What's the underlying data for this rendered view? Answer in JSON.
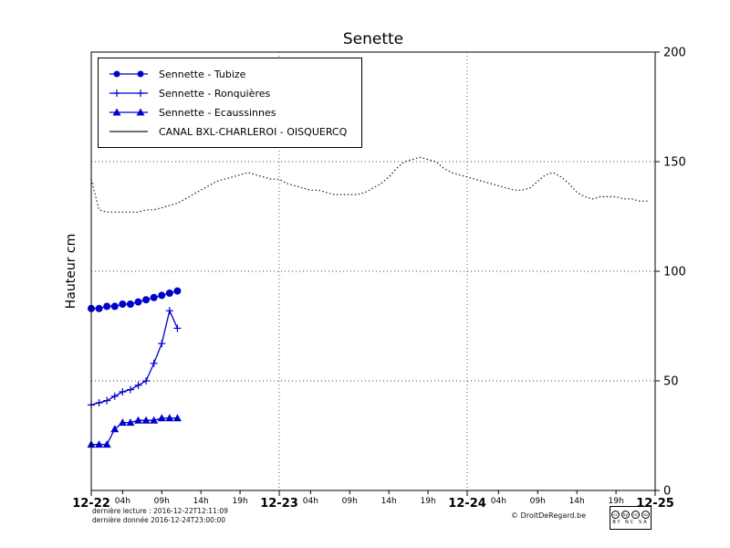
{
  "chart_data": {
    "type": "line",
    "title": "Senette",
    "ylabel": "Hauteur cm",
    "ylim": [
      0,
      200
    ],
    "xlim_hours": [
      0,
      72
    ],
    "grid": {
      "vertical_hours": [
        24,
        48
      ],
      "horizontal_values": [
        50,
        100,
        150
      ]
    },
    "y_ticks": [
      {
        "value": 0,
        "label": "0"
      },
      {
        "value": 50,
        "label": "50"
      },
      {
        "value": 100,
        "label": "100"
      },
      {
        "value": 150,
        "label": "150"
      },
      {
        "value": 200,
        "label": "200"
      }
    ],
    "x_major_ticks": [
      {
        "hour": 0,
        "label": "12-22"
      },
      {
        "hour": 24,
        "label": "12-23"
      },
      {
        "hour": 48,
        "label": "12-24"
      },
      {
        "hour": 72,
        "label": "12-25"
      }
    ],
    "x_minor_ticks": [
      {
        "hour": 4,
        "label": "04h"
      },
      {
        "hour": 9,
        "label": "09h"
      },
      {
        "hour": 14,
        "label": "14h"
      },
      {
        "hour": 19,
        "label": "19h"
      },
      {
        "hour": 28,
        "label": "04h"
      },
      {
        "hour": 33,
        "label": "09h"
      },
      {
        "hour": 38,
        "label": "14h"
      },
      {
        "hour": 43,
        "label": "19h"
      },
      {
        "hour": 52,
        "label": "04h"
      },
      {
        "hour": 57,
        "label": "09h"
      },
      {
        "hour": 62,
        "label": "14h"
      },
      {
        "hour": 67,
        "label": "19h"
      }
    ],
    "series": [
      {
        "name": "Sennette - Tubize",
        "color": "#0000cc",
        "marker": "circle",
        "line": "solid",
        "x_hours": [
          0,
          1,
          2,
          3,
          4,
          5,
          6,
          7,
          8,
          9,
          10,
          11
        ],
        "values": [
          83,
          83,
          84,
          84,
          85,
          85,
          86,
          87,
          88,
          89,
          90,
          91
        ]
      },
      {
        "name": "Sennette - Ronquières",
        "color": "#0000cc",
        "marker": "plus",
        "line": "solid",
        "x_hours": [
          0,
          1,
          2,
          3,
          4,
          5,
          6,
          7,
          8,
          9,
          10,
          11
        ],
        "values": [
          39,
          40,
          41,
          43,
          45,
          46,
          48,
          50,
          58,
          67,
          82,
          74
        ]
      },
      {
        "name": "Sennette - Ecaussinnes",
        "color": "#0000cc",
        "marker": "triangle",
        "line": "solid",
        "x_hours": [
          0,
          1,
          2,
          3,
          4,
          5,
          6,
          7,
          8,
          9,
          10,
          11
        ],
        "values": [
          21,
          21,
          21,
          28,
          31,
          31,
          32,
          32,
          32,
          33,
          33,
          33
        ]
      },
      {
        "name": "CANAL BXL-CHARLEROI  - OISQUERCQ",
        "color": "#1a1a1a",
        "marker": "none",
        "line": "dotted",
        "x_hours": [
          0,
          1,
          2,
          3,
          4,
          5,
          6,
          7,
          8,
          9,
          10,
          11,
          12,
          13,
          14,
          15,
          16,
          17,
          18,
          19,
          20,
          21,
          22,
          23,
          24,
          25,
          26,
          27,
          28,
          29,
          30,
          31,
          32,
          33,
          34,
          35,
          36,
          37,
          38,
          39,
          40,
          41,
          42,
          43,
          44,
          45,
          46,
          47,
          48,
          49,
          50,
          51,
          52,
          53,
          54,
          55,
          56,
          57,
          58,
          59,
          60,
          61,
          62,
          63,
          64,
          65,
          66,
          67,
          68,
          69,
          70,
          71
        ],
        "values": [
          142,
          128,
          127,
          127,
          127,
          127,
          127,
          128,
          128,
          129,
          130,
          131,
          133,
          135,
          137,
          139,
          141,
          142,
          143,
          144,
          145,
          144,
          143,
          142,
          142,
          140,
          139,
          138,
          137,
          137,
          136,
          135,
          135,
          135,
          135,
          136,
          138,
          140,
          143,
          147,
          150,
          151,
          152,
          151,
          150,
          147,
          145,
          144,
          143,
          142,
          141,
          140,
          139,
          138,
          137,
          137,
          138,
          141,
          144,
          145,
          143,
          140,
          136,
          134,
          133,
          134,
          134,
          134,
          133,
          133,
          132,
          132
        ]
      }
    ]
  },
  "footer": {
    "last_reading": "dernière lecture : 2016-12-22T12:11:09",
    "last_data": "dernière donnée  2016-12-24T23:00:00",
    "credit": "© DroitDeRegard.be",
    "cc_icons": [
      "cc",
      "by",
      "nc",
      "sa"
    ],
    "cc_terms": "BY NC SA"
  }
}
